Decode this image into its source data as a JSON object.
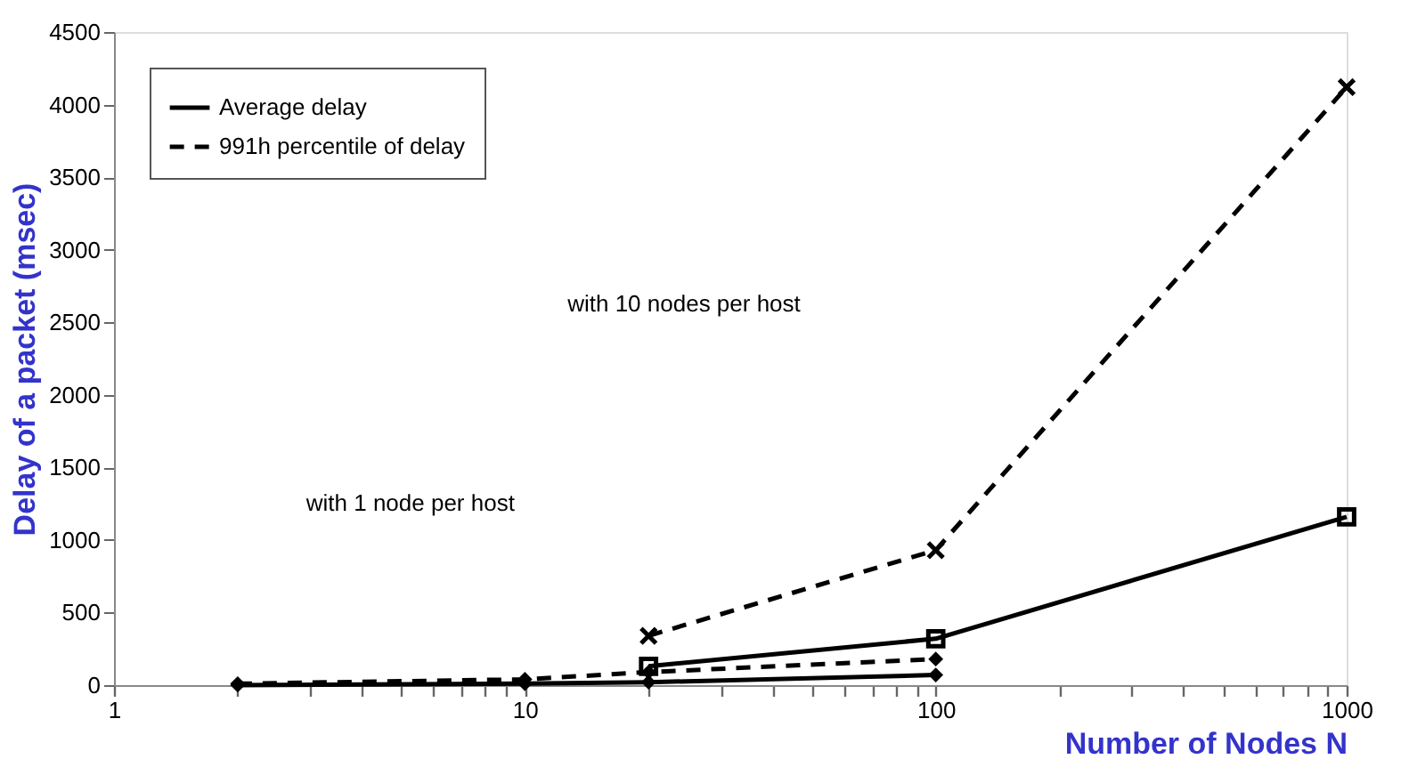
{
  "chart_data": {
    "type": "line",
    "xlabel": "Number of Nodes N",
    "ylabel": "Delay of a packet (msec)",
    "log": "x",
    "xlim": [
      1,
      1000
    ],
    "ylim": [
      0,
      4500
    ],
    "xticks": [
      1,
      {
        "value": 2,
        "label": null
      },
      {
        "value": 3,
        "label": null
      },
      {
        "value": 4,
        "label": null
      },
      {
        "value": 5,
        "label": null
      },
      {
        "value": 6,
        "label": null
      },
      {
        "value": 7,
        "label": null
      },
      {
        "value": 8,
        "label": null
      },
      {
        "value": 9,
        "label": null
      },
      10,
      {
        "value": 20,
        "label": null
      },
      {
        "value": 30,
        "label": null
      },
      {
        "value": 40,
        "label": null
      },
      {
        "value": 50,
        "label": null
      },
      {
        "value": 60,
        "label": null
      },
      {
        "value": 70,
        "label": null
      },
      {
        "value": 80,
        "label": null
      },
      {
        "value": 90,
        "label": null
      },
      100,
      {
        "value": 200,
        "label": null
      },
      {
        "value": 300,
        "label": null
      },
      {
        "value": 400,
        "label": null
      },
      {
        "value": 500,
        "label": null
      },
      {
        "value": 600,
        "label": null
      },
      {
        "value": 700,
        "label": null
      },
      {
        "value": 800,
        "label": null
      },
      {
        "value": 900,
        "label": null
      },
      1000
    ],
    "yticks": [
      0,
      500,
      1000,
      1500,
      2000,
      2500,
      3000,
      3500,
      4000,
      4500
    ],
    "grid": false,
    "legend": "top left",
    "series": [
      {
        "name": "Average delay",
        "color": "#000000",
        "line_style": "solid",
        "marker": "square",
        "x": [
          20,
          100,
          1000
        ],
        "values": [
          130,
          320,
          1160
        ]
      },
      {
        "name": "991h percentile of delay",
        "color": "#000000",
        "line_style": "dashed",
        "marker": "cross",
        "x": [
          20,
          100,
          1000
        ],
        "values": [
          340,
          930,
          4120
        ]
      },
      {
        "color": "#000000",
        "line_style": "solid",
        "marker": "diamond",
        "x": [
          2,
          10,
          20,
          100
        ],
        "values": [
          0,
          10,
          20,
          70
        ]
      },
      {
        "color": "#000000",
        "line_style": "dashed",
        "marker": "diamond",
        "x": [
          2,
          10,
          20,
          100
        ],
        "values": [
          10,
          40,
          90,
          180
        ]
      }
    ],
    "annotations": [
      "with 10 nodes per host",
      "with 1 node per host"
    ]
  }
}
